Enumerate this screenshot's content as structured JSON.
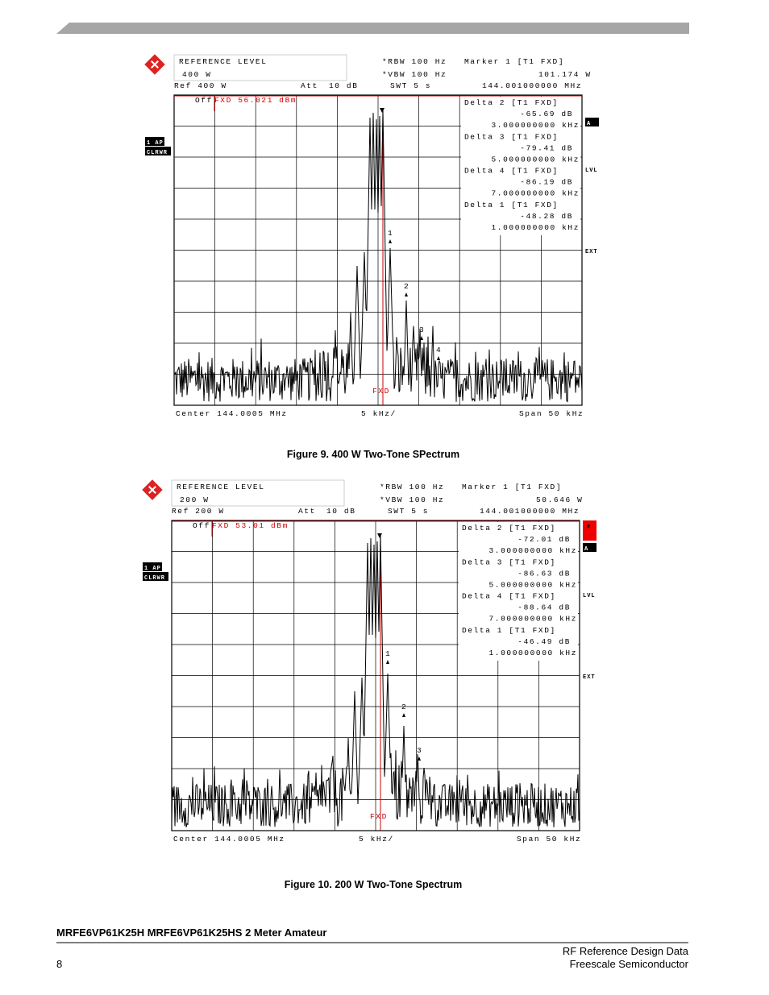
{
  "figures": [
    {
      "screen": {
        "ref_level_title": "REFERENCE LEVEL",
        "ref_level": "400 W",
        "rbw": "*RBW 100 Hz",
        "vbw": "*VBW 100 Hz",
        "swt": "SWT 5 s",
        "marker": "Marker 1 [T1 FXD]",
        "marker_value": "101.174 W",
        "marker_freq": "144.001000000 MHz",
        "ref": "Ref  400 W",
        "att_label": "Att",
        "att_value": "10 dB",
        "offset_label": "Off",
        "offset_value": "FXD 56.021 dBm",
        "deltas": [
          {
            "label": "Delta 2 [T1 FXD]",
            "level": "-65.69 dB",
            "freq": "3.000000000 kHz"
          },
          {
            "label": "Delta 3 [T1 FXD]",
            "level": "-79.41 dB",
            "freq": "5.000000000 kHz"
          },
          {
            "label": "Delta 4 [T1 FXD]",
            "level": "-86.19 dB",
            "freq": "7.000000000 kHz"
          },
          {
            "label": "Delta 1 [T1 FXD]",
            "level": "-48.28 dB",
            "freq": "1.000000000 kHz"
          }
        ],
        "trace_mode": "1 AP",
        "trace_clear": "CLRWR",
        "side_a": "A",
        "side_lvl": "LVL",
        "side_ext": "EXT",
        "markers": [
          "1",
          "2",
          "3",
          "4"
        ],
        "fxd": "FXD",
        "center": "Center 144.0005 MHz",
        "div": "5 kHz/",
        "span": "Span 50 kHz"
      },
      "caption": "Figure 9. 400 W Two-Tone SPectrum"
    },
    {
      "screen": {
        "ref_level_title": "REFERENCE LEVEL",
        "ref_level": "200 W",
        "rbw": "*RBW 100 Hz",
        "vbw": "*VBW 100 Hz",
        "swt": "SWT 5 s",
        "marker": "Marker 1 [T1 FXD]",
        "marker_value": "50.646 W",
        "marker_freq": "144.001000000 MHz",
        "ref": "Ref  200 W",
        "att_label": "Att",
        "att_value": "10 dB",
        "offset_label": "Off",
        "offset_value": "FXD 53.01 dBm",
        "deltas": [
          {
            "label": "Delta 2 [T1 FXD]",
            "level": "-72.01 dB",
            "freq": "3.000000000 kHz"
          },
          {
            "label": "Delta 3 [T1 FXD]",
            "level": "-86.63 dB",
            "freq": "5.000000000 kHz"
          },
          {
            "label": "Delta 4 [T1 FXD]",
            "level": "-88.64 dB",
            "freq": "7.000000000 kHz"
          },
          {
            "label": "Delta 1 [T1 FXD]",
            "level": "-46.49 dB",
            "freq": "1.000000000 kHz"
          }
        ],
        "trace_mode": "1 AP",
        "trace_clear": "CLRWR",
        "side_star": "*",
        "side_a": "A",
        "side_lvl": "LVL",
        "side_ext": "EXT",
        "markers": [
          "1",
          "2",
          "3"
        ],
        "fxd": "FXD",
        "center": "Center 144.0005 MHz",
        "div": "5 kHz/",
        "span": "Span 50 kHz"
      },
      "caption": "Figure 10. 200 W Two-Tone Spectrum"
    }
  ],
  "footer": {
    "doc_title": "MRFE6VP61K25H MRFE6VP61K25HS 2 Meter Amateur",
    "line1": "RF Reference Design Data",
    "line2": "Freescale Semiconductor",
    "page": "8"
  }
}
